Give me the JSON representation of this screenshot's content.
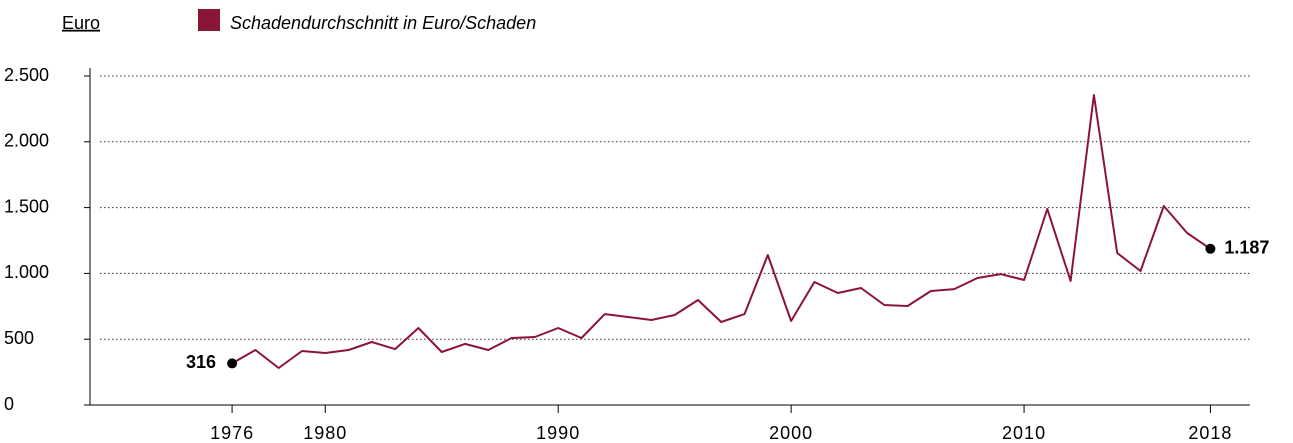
{
  "chart_data": {
    "type": "line",
    "y_axis_label": "Euro",
    "x": [
      1976,
      1977,
      1978,
      1979,
      1980,
      1981,
      1982,
      1983,
      1984,
      1985,
      1986,
      1987,
      1988,
      1989,
      1990,
      1991,
      1992,
      1993,
      1994,
      1995,
      1996,
      1997,
      1998,
      1999,
      2000,
      2001,
      2002,
      2003,
      2004,
      2005,
      2006,
      2007,
      2008,
      2009,
      2010,
      2011,
      2012,
      2013,
      2014,
      2015,
      2016,
      2017,
      2018
    ],
    "series": [
      {
        "name": "Schadendurchschnitt in Euro/Schaden",
        "color": "#8b1538",
        "values": [
          316,
          418,
          281,
          410,
          395,
          418,
          479,
          425,
          585,
          403,
          464,
          418,
          509,
          517,
          585,
          509,
          691,
          669,
          646,
          684,
          798,
          631,
          691,
          1140,
          638,
          935,
          851,
          889,
          760,
          752,
          866,
          881,
          965,
          995,
          950,
          1489,
          942,
          2356,
          1155,
          1018,
          1512,
          1307,
          1187
        ],
        "value_labels": [
          "316",
          null,
          null,
          null,
          null,
          null,
          null,
          null,
          null,
          null,
          null,
          null,
          null,
          null,
          null,
          null,
          null,
          null,
          null,
          null,
          null,
          null,
          null,
          null,
          null,
          null,
          null,
          null,
          null,
          null,
          null,
          null,
          null,
          null,
          null,
          null,
          null,
          null,
          null,
          null,
          null,
          null,
          "1.187"
        ]
      }
    ],
    "xlim": [
      1969.9,
      2019.7
    ],
    "xticks": [
      1976,
      1980,
      1990,
      2000,
      2010,
      2018
    ],
    "ylim": [
      0,
      2500
    ],
    "yticks": [
      0,
      {
        "value": 500,
        "label": "500"
      },
      {
        "value": 1000,
        "label": "1.000"
      },
      {
        "value": 1500,
        "label": "1.500"
      },
      {
        "value": 2000,
        "label": "2.000"
      },
      {
        "value": 2500,
        "label": "2.500"
      }
    ],
    "grid": true
  }
}
